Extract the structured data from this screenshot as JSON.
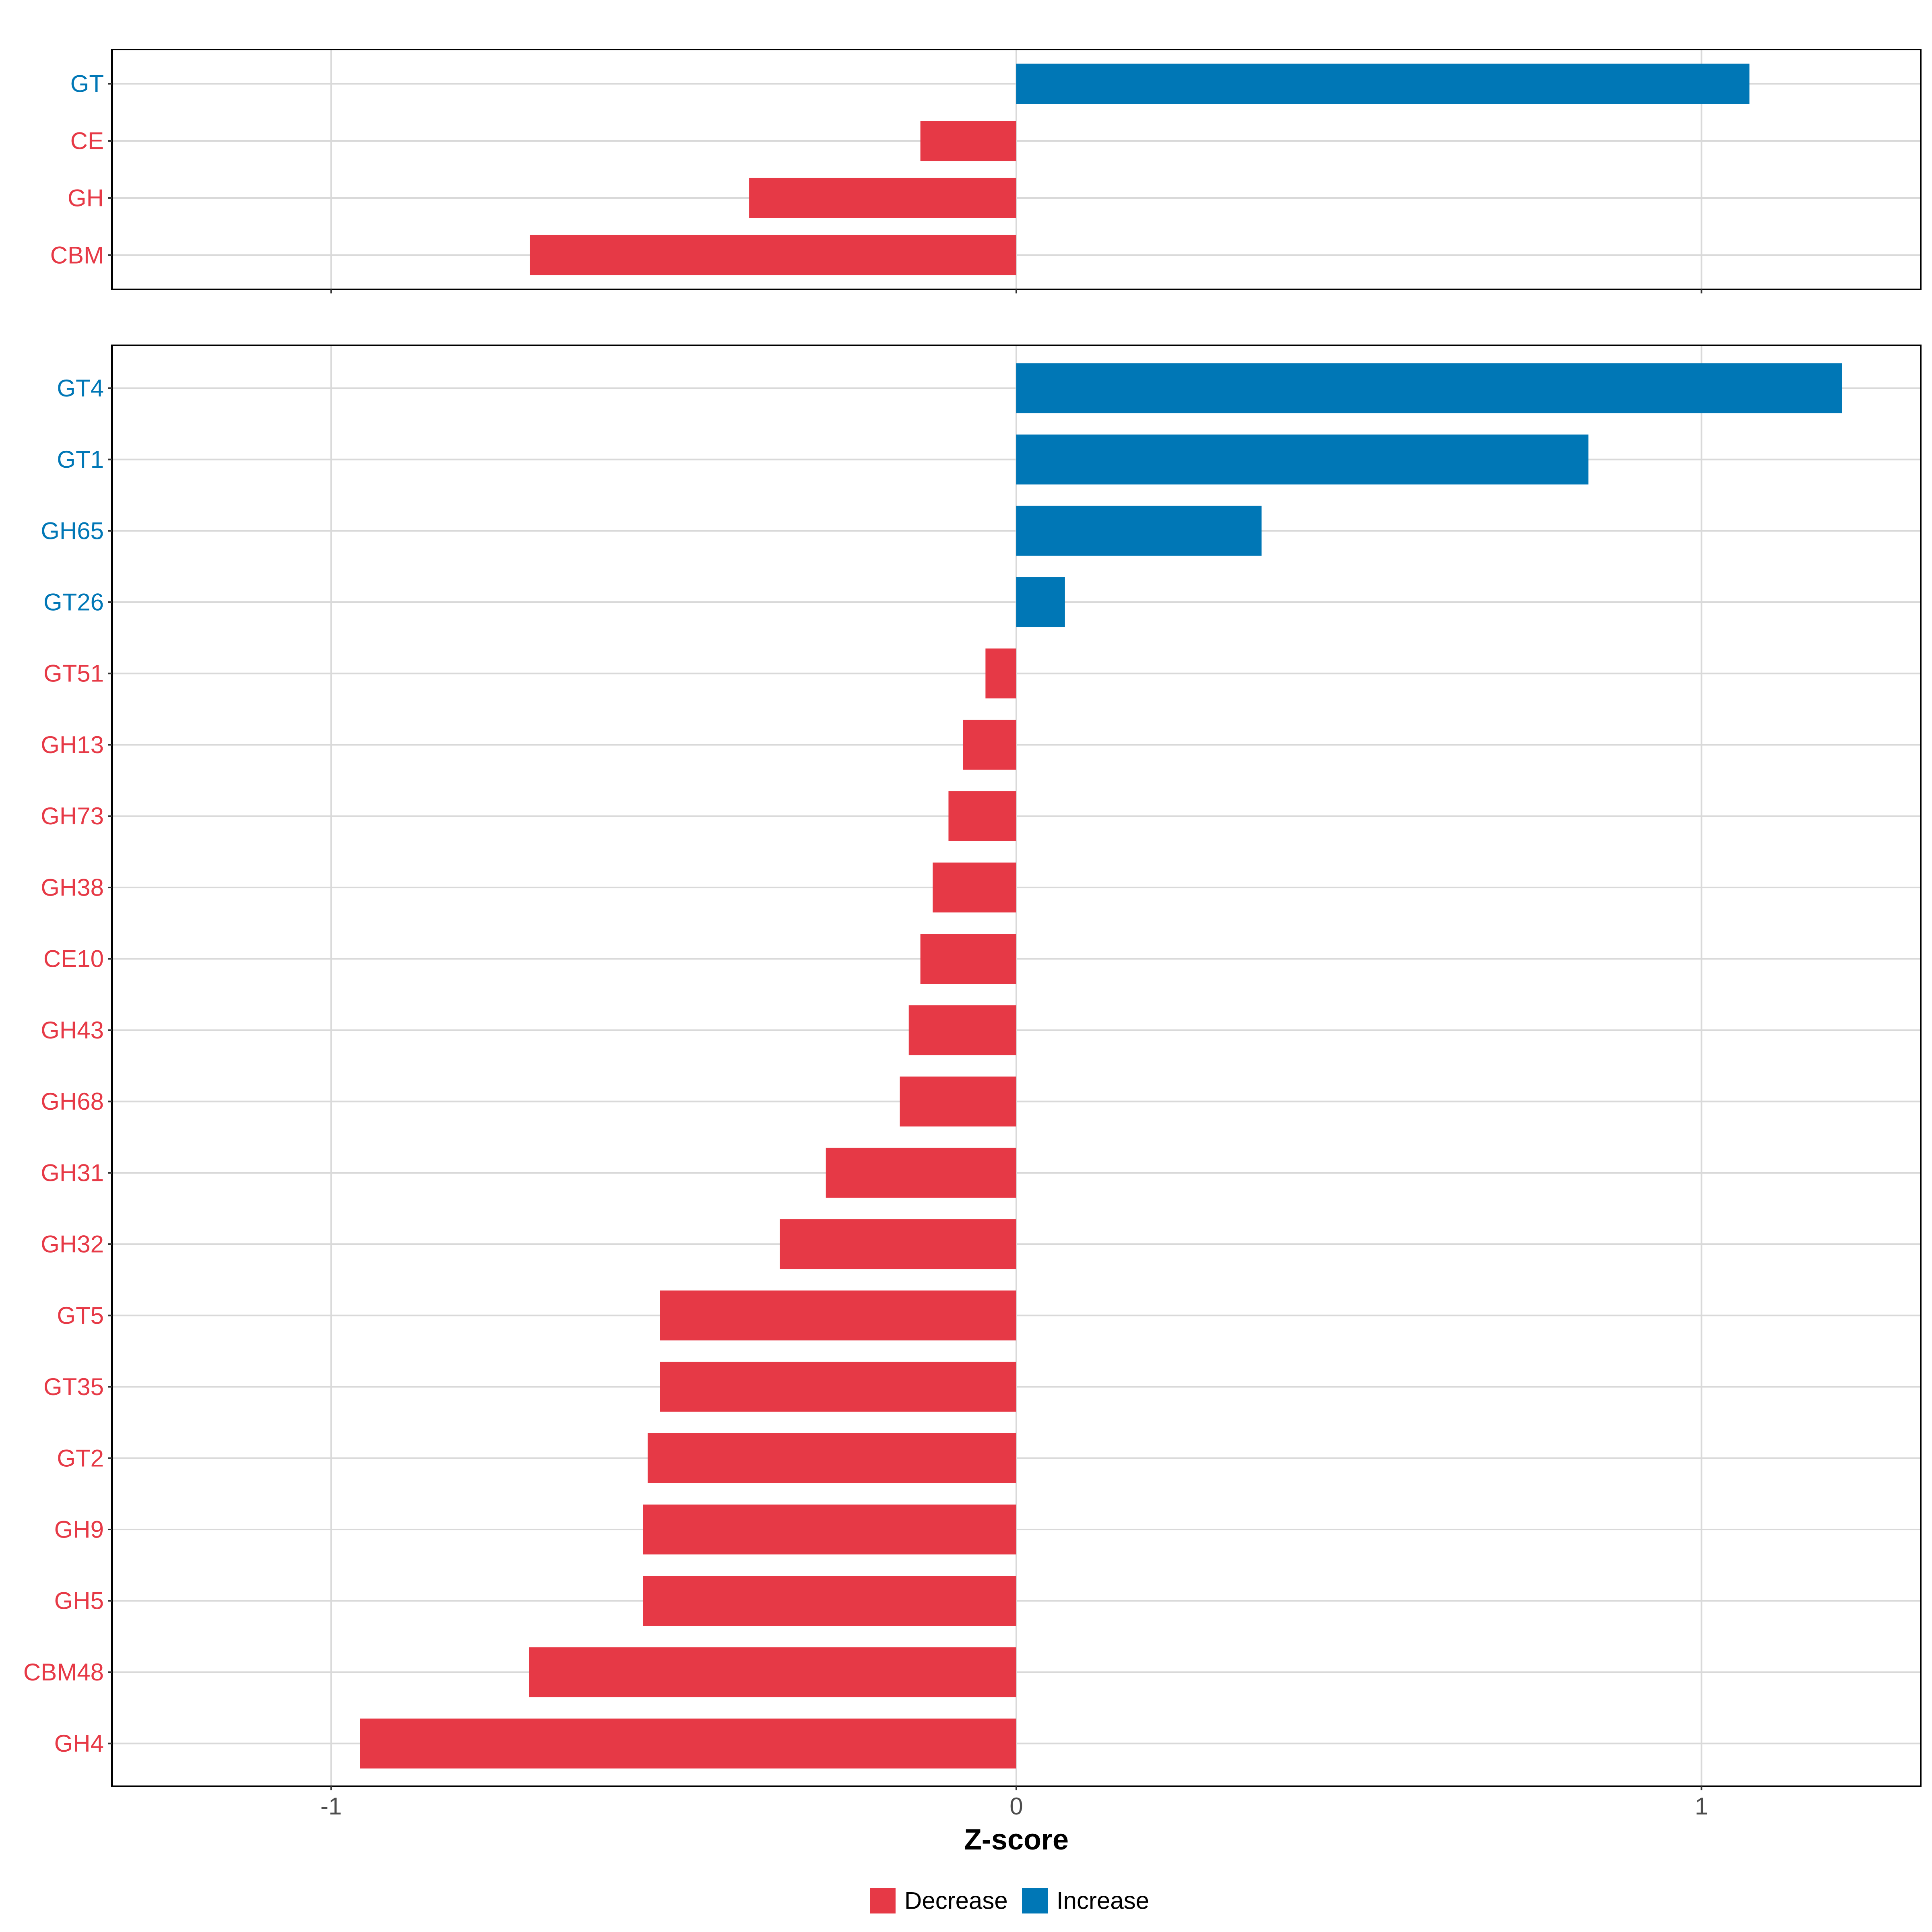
{
  "chart_data": [
    {
      "type": "bar",
      "orientation": "horizontal",
      "panel": "top",
      "categories": [
        "GT",
        "CE",
        "GH",
        "CBM"
      ],
      "values": [
        1.07,
        -0.14,
        -0.39,
        -0.71
      ],
      "xlim": [
        -1.32,
        1.32
      ],
      "xticks": [
        -1,
        0,
        1
      ],
      "grid": true
    },
    {
      "type": "bar",
      "orientation": "horizontal",
      "panel": "bottom",
      "categories": [
        "GT4",
        "GT1",
        "GH65",
        "GT26",
        "GT51",
        "GH13",
        "GH73",
        "GH38",
        "CE10",
        "GH43",
        "GH68",
        "GH31",
        "GH32",
        "GT5",
        "GT35",
        "GT2",
        "GH9",
        "GH5",
        "CBM48",
        "GH4"
      ],
      "values": [
        1.205,
        0.835,
        0.358,
        0.071,
        -0.045,
        -0.078,
        -0.099,
        -0.122,
        -0.14,
        -0.157,
        -0.17,
        -0.278,
        -0.345,
        -0.52,
        -0.52,
        -0.538,
        -0.545,
        -0.545,
        -0.711,
        -0.958
      ],
      "xlim": [
        -1.32,
        1.32
      ],
      "xticks": [
        -1,
        0,
        1
      ],
      "xtick_labels": [
        "-1",
        "0",
        "1"
      ],
      "xlabel": "Z-score",
      "grid": true
    }
  ],
  "legend": {
    "items": [
      {
        "label": "Decrease",
        "color": "#E63946"
      },
      {
        "label": "Increase",
        "color": "#0077B6"
      }
    ],
    "position": "bottom"
  },
  "colors": {
    "decrease": "#E63946",
    "increase": "#0077B6",
    "grid": "#d9d9d9"
  }
}
